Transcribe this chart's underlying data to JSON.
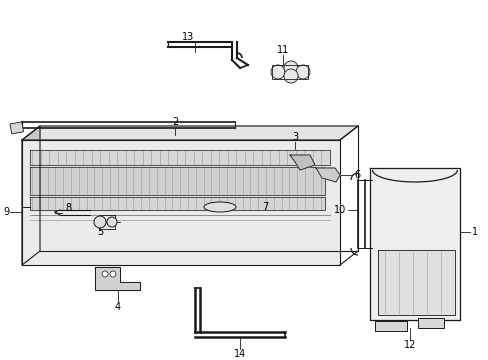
{
  "background_color": "#ffffff",
  "line_color": "#1a1a1a",
  "gray_fill": "#e8e8e8",
  "gray_med": "#d0d0d0",
  "gray_dark": "#b0b0b0",
  "gray_light": "#f0f0f0"
}
